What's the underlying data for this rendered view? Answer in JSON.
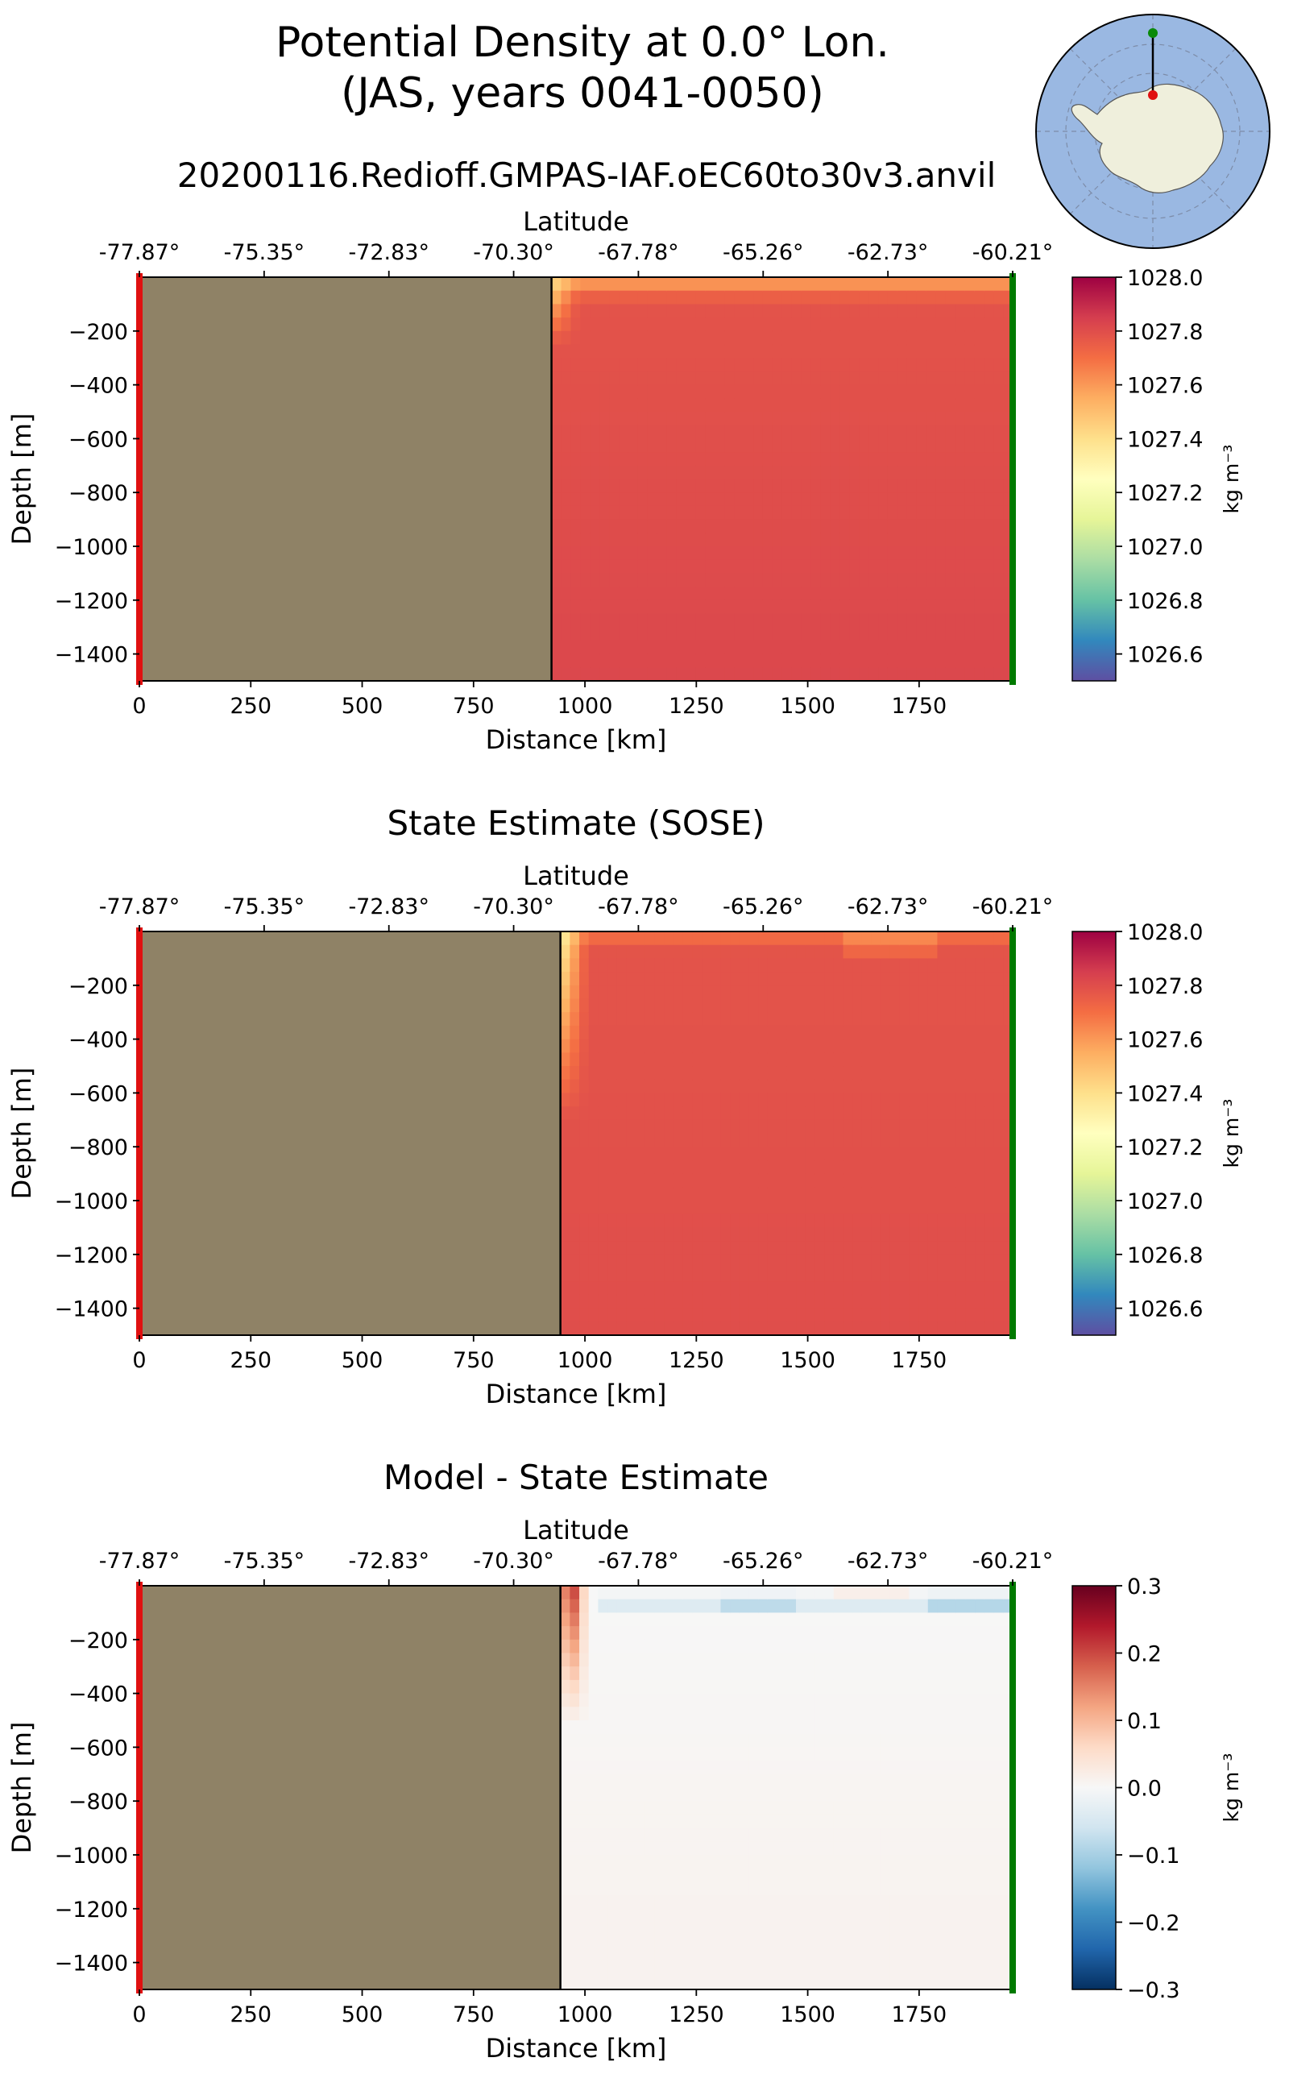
{
  "figure": {
    "title_line1": "Potential Density at 0.0° Lon.",
    "title_line2": "(JAS, years 0041-0050)",
    "run_name": "20200116.Redioff.GMPAS-IAF.oEC60to30v3.anvil",
    "inset_map": "antarctic-polar-stereographic-locator-map",
    "colors": {
      "land": "#8f8266",
      "start_marker": "#e01010",
      "end_marker": "#007a00"
    }
  },
  "chart_data": [
    {
      "type": "heatmap",
      "id": "model",
      "title": "",
      "xlabel": "Distance [km]",
      "ylabel": "Depth [m]",
      "top_axis_label": "Latitude",
      "xlim": [
        0,
        1960
      ],
      "ylim": [
        -1500,
        0
      ],
      "x_ticks": [
        0,
        250,
        500,
        750,
        1000,
        1250,
        1500,
        1750
      ],
      "x_tick_labels": [
        "0",
        "250",
        "500",
        "750",
        "1000",
        "1250",
        "1500",
        "1750"
      ],
      "y_ticks": [
        -200,
        -400,
        -600,
        -800,
        -1000,
        -1200,
        -1400
      ],
      "y_tick_labels": [
        "−200",
        "−400",
        "−600",
        "−800",
        "−1000",
        "−1200",
        "−1400"
      ],
      "lat_ticks": [
        0,
        280,
        560,
        840,
        1120,
        1400,
        1680,
        1960
      ],
      "lat_tick_labels": [
        "-77.87°",
        "-75.35°",
        "-72.83°",
        "-70.30°",
        "-67.78°",
        "-65.26°",
        "-62.73°",
        "-60.21°"
      ],
      "land_until_km": 925,
      "colormap": "Spectral_r",
      "colorbar": {
        "min": 1026.5,
        "max": 1028.0,
        "ticks": [
          1028.0,
          1027.8,
          1027.6,
          1027.4,
          1027.2,
          1027.0,
          1026.8,
          1026.6
        ],
        "tick_labels": [
          "1028.0",
          "1027.8",
          "1027.6",
          "1027.4",
          "1027.2",
          "1027.0",
          "1026.8",
          "1026.6"
        ],
        "label": "kg m⁻³"
      },
      "field_summary": {
        "surface_value": 1027.55,
        "interior_value": 1027.78,
        "deep_value": 1027.82,
        "shelf_break_surface_value": 1027.4
      }
    },
    {
      "type": "heatmap",
      "id": "sose",
      "title": "State Estimate (SOSE)",
      "xlabel": "Distance [km]",
      "ylabel": "Depth [m]",
      "top_axis_label": "Latitude",
      "xlim": [
        0,
        1960
      ],
      "ylim": [
        -1500,
        0
      ],
      "x_ticks": [
        0,
        250,
        500,
        750,
        1000,
        1250,
        1500,
        1750
      ],
      "x_tick_labels": [
        "0",
        "250",
        "500",
        "750",
        "1000",
        "1250",
        "1500",
        "1750"
      ],
      "y_ticks": [
        -200,
        -400,
        -600,
        -800,
        -1000,
        -1200,
        -1400
      ],
      "y_tick_labels": [
        "−200",
        "−400",
        "−600",
        "−800",
        "−1000",
        "−1200",
        "−1400"
      ],
      "lat_ticks": [
        0,
        280,
        560,
        840,
        1120,
        1400,
        1680,
        1960
      ],
      "lat_tick_labels": [
        "-77.87°",
        "-75.35°",
        "-72.83°",
        "-70.30°",
        "-67.78°",
        "-65.26°",
        "-62.73°",
        "-60.21°"
      ],
      "land_until_km": 945,
      "colormap": "Spectral_r",
      "colorbar": {
        "min": 1026.5,
        "max": 1028.0,
        "ticks": [
          1028.0,
          1027.8,
          1027.6,
          1027.4,
          1027.2,
          1027.0,
          1026.8,
          1026.6
        ],
        "tick_labels": [
          "1028.0",
          "1027.8",
          "1027.6",
          "1027.4",
          "1027.2",
          "1027.0",
          "1026.8",
          "1026.6"
        ],
        "label": "kg m⁻³"
      },
      "field_summary": {
        "surface_value": 1027.6,
        "interior_value": 1027.78,
        "deep_value": 1027.8,
        "shelf_break_surface_value": 1027.3
      }
    },
    {
      "type": "heatmap",
      "id": "diff",
      "title": "Model - State Estimate",
      "xlabel": "Distance [km]",
      "ylabel": "Depth [m]",
      "top_axis_label": "Latitude",
      "xlim": [
        0,
        1960
      ],
      "ylim": [
        -1500,
        0
      ],
      "x_ticks": [
        0,
        250,
        500,
        750,
        1000,
        1250,
        1500,
        1750
      ],
      "x_tick_labels": [
        "0",
        "250",
        "500",
        "750",
        "1000",
        "1250",
        "1500",
        "1750"
      ],
      "y_ticks": [
        -200,
        -400,
        -600,
        -800,
        -1000,
        -1200,
        -1400
      ],
      "y_tick_labels": [
        "−200",
        "−400",
        "−600",
        "−800",
        "−1000",
        "−1200",
        "−1400"
      ],
      "lat_ticks": [
        0,
        280,
        560,
        840,
        1120,
        1400,
        1680,
        1960
      ],
      "lat_tick_labels": [
        "-77.87°",
        "-75.35°",
        "-72.83°",
        "-70.30°",
        "-67.78°",
        "-65.26°",
        "-62.73°",
        "-60.21°"
      ],
      "land_until_km": 945,
      "colormap": "RdBu_r",
      "colorbar": {
        "min": -0.3,
        "max": 0.3,
        "ticks": [
          0.3,
          0.2,
          0.1,
          0.0,
          -0.1,
          -0.2,
          -0.3
        ],
        "tick_labels": [
          "0.3",
          "0.2",
          "0.1",
          "0.0",
          "−0.1",
          "−0.2",
          "−0.3"
        ],
        "label": "kg m⁻³"
      },
      "field_summary": {
        "slope_anomaly": 0.22,
        "near_surface_anomaly": -0.08,
        "deep_anomaly": 0.01
      }
    }
  ]
}
